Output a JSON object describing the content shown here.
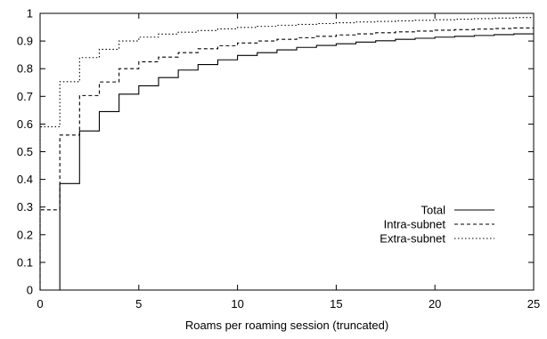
{
  "chart_data": {
    "type": "line",
    "title": "",
    "xlabel": "Roams per roaming session (truncated)",
    "ylabel": "",
    "xlim": [
      0,
      25
    ],
    "ylim": [
      0,
      1
    ],
    "x_ticks": [
      "0",
      "5",
      "10",
      "15",
      "20",
      "25"
    ],
    "y_ticks": [
      "0",
      "0.1",
      "0.2",
      "0.3",
      "0.4",
      "0.5",
      "0.6",
      "0.7",
      "0.8",
      "0.9",
      "1"
    ],
    "grid": false,
    "legend_position": "right",
    "step": true,
    "series": [
      {
        "name": "Total",
        "dash": "solid",
        "x": [
          1,
          2,
          3,
          4,
          5,
          6,
          7,
          8,
          9,
          10,
          11,
          12,
          13,
          14,
          15,
          16,
          17,
          18,
          19,
          20,
          21,
          22,
          23,
          24,
          25
        ],
        "y": [
          0.385,
          0.575,
          0.645,
          0.708,
          0.738,
          0.768,
          0.795,
          0.815,
          0.832,
          0.848,
          0.858,
          0.868,
          0.877,
          0.884,
          0.89,
          0.896,
          0.901,
          0.906,
          0.91,
          0.914,
          0.917,
          0.92,
          0.923,
          0.926,
          0.928
        ]
      },
      {
        "name": "Intra-subnet",
        "dash": "dashed",
        "x": [
          0,
          1,
          2,
          3,
          4,
          5,
          6,
          7,
          8,
          9,
          10,
          11,
          12,
          13,
          14,
          15,
          16,
          17,
          18,
          19,
          20,
          21,
          22,
          23,
          24,
          25
        ],
        "y": [
          0.29,
          0.56,
          0.703,
          0.752,
          0.8,
          0.825,
          0.842,
          0.858,
          0.872,
          0.883,
          0.893,
          0.9,
          0.906,
          0.912,
          0.917,
          0.922,
          0.926,
          0.93,
          0.933,
          0.936,
          0.939,
          0.941,
          0.943,
          0.945,
          0.947,
          0.949
        ]
      },
      {
        "name": "Extra-subnet",
        "dash": "dotted",
        "x": [
          0,
          1,
          2,
          3,
          4,
          5,
          6,
          7,
          8,
          9,
          10,
          11,
          12,
          13,
          14,
          15,
          16,
          17,
          18,
          19,
          20,
          21,
          22,
          23,
          24,
          25
        ],
        "y": [
          0.59,
          0.753,
          0.84,
          0.87,
          0.9,
          0.914,
          0.925,
          0.932,
          0.938,
          0.944,
          0.949,
          0.953,
          0.957,
          0.96,
          0.963,
          0.966,
          0.969,
          0.971,
          0.973,
          0.975,
          0.977,
          0.979,
          0.981,
          0.983,
          0.985,
          0.987
        ]
      }
    ]
  }
}
